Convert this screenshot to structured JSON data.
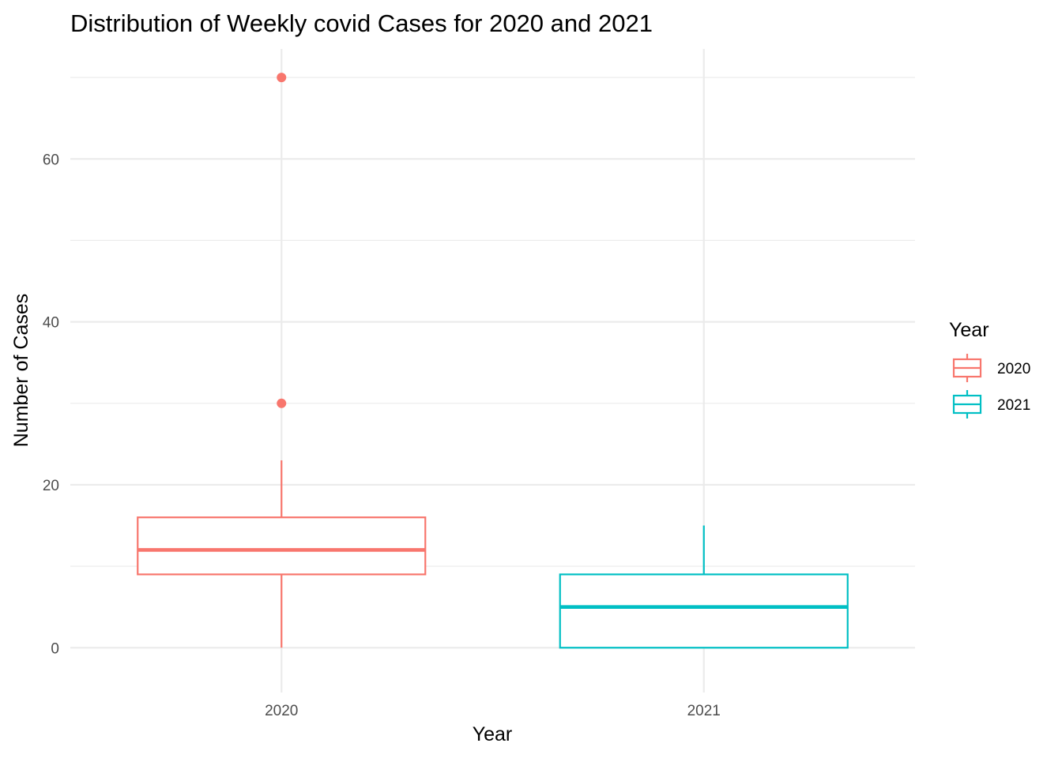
{
  "chart_data": {
    "type": "boxplot",
    "title": "Distribution of Weekly covid Cases for 2020 and 2021",
    "xlabel": "Year",
    "ylabel": "Number of Cases",
    "categories": [
      "2020",
      "2021"
    ],
    "ylim": [
      -5.5,
      73.5
    ],
    "yticks": [
      0,
      20,
      40,
      60
    ],
    "yminor": [
      10,
      30,
      50,
      70
    ],
    "grid": true,
    "legend": {
      "title": "Year",
      "position": "right",
      "entries": [
        "2020",
        "2021"
      ]
    },
    "series": [
      {
        "name": "2020",
        "color": "#F8766D",
        "min": 0,
        "q1": 9,
        "median": 12,
        "q3": 16,
        "max": 23,
        "outliers": [
          30,
          70
        ]
      },
      {
        "name": "2021",
        "color": "#00BFC4",
        "min": 0,
        "q1": 0,
        "median": 5,
        "q3": 9,
        "max": 15,
        "outliers": []
      }
    ]
  }
}
